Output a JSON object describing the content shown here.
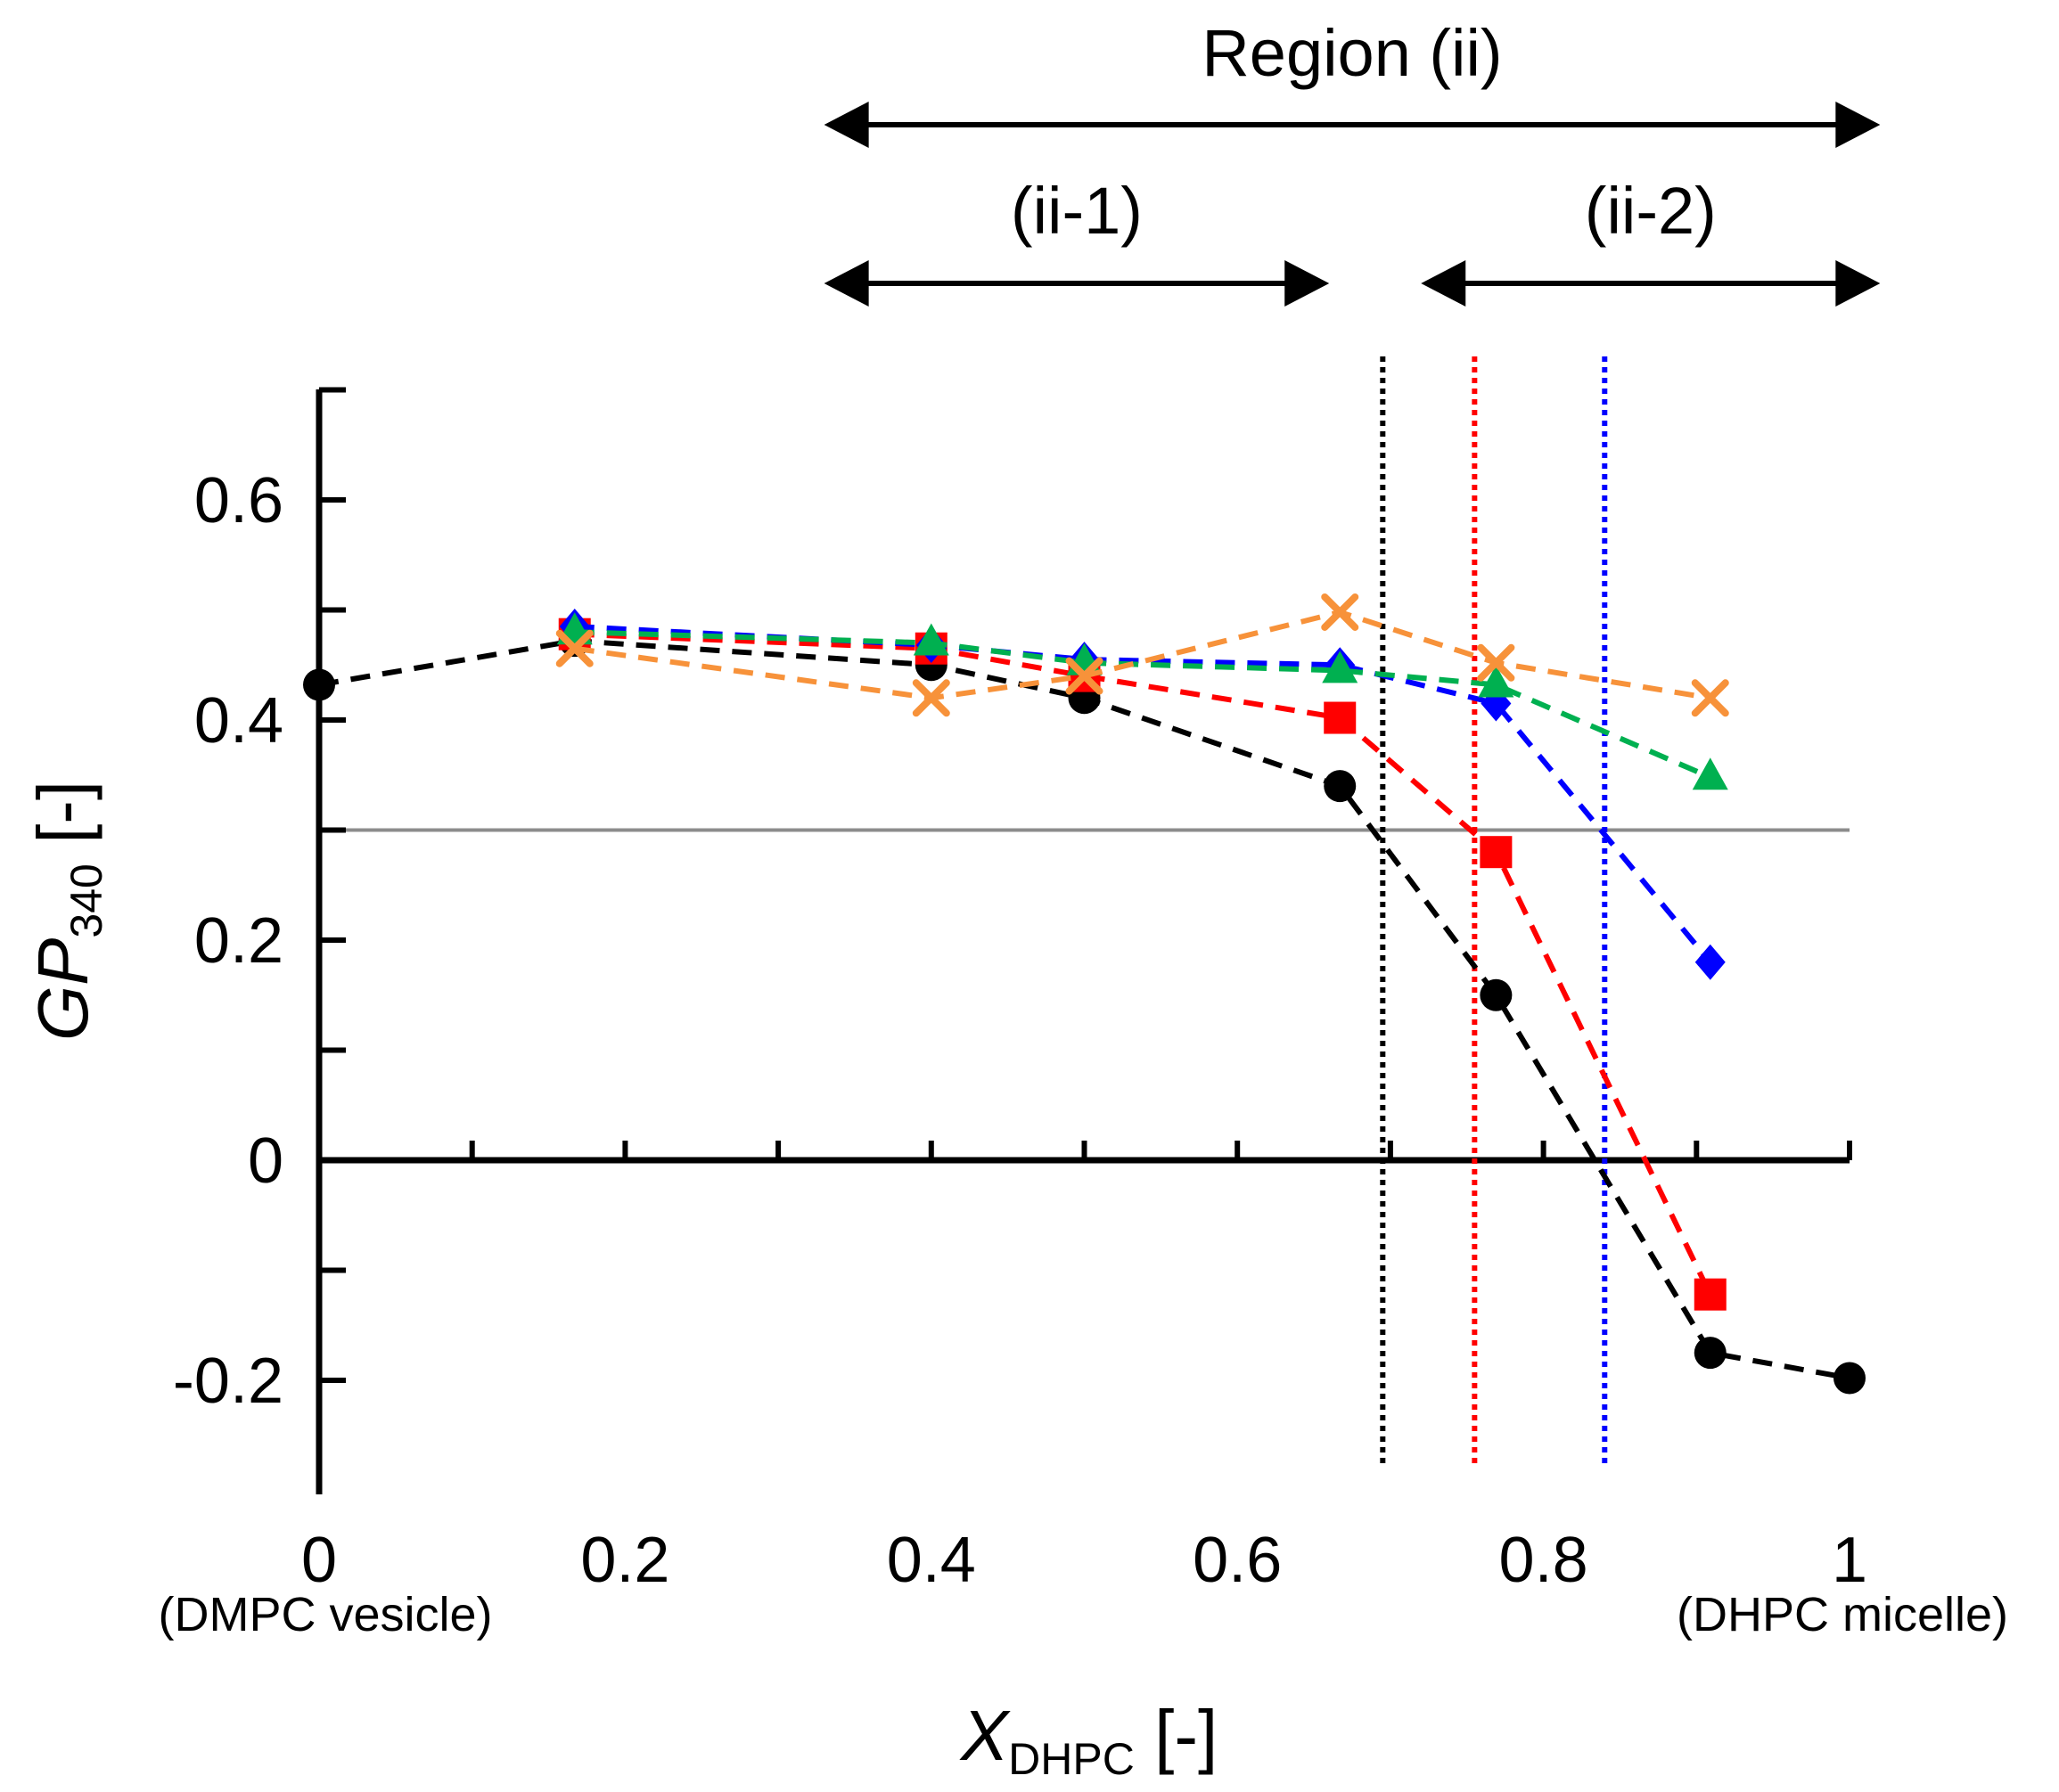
{
  "chart_data": {
    "type": "line",
    "xlabel_main": "X",
    "xlabel_sub": "DHPC",
    "xlabel_suffix": " [-]",
    "ylabel_main": "GP",
    "ylabel_sub": "340",
    "ylabel_suffix": " [-]",
    "xlim": [
      0,
      1
    ],
    "ylim": [
      -0.27,
      0.7
    ],
    "x_ticks": [
      0,
      0.2,
      0.4,
      0.6,
      0.8,
      1
    ],
    "x_tick_labels": [
      "0",
      "0.2",
      "0.4",
      "0.6",
      "0.8",
      "1"
    ],
    "x_minor_ticks": [
      0.1,
      0.3,
      0.5,
      0.7,
      0.9
    ],
    "y_ticks": [
      -0.2,
      0,
      0.2,
      0.4,
      0.6
    ],
    "y_tick_labels": [
      "-0.2",
      "0",
      "0.2",
      "0.4",
      "0.6"
    ],
    "y_minor_ticks": [
      -0.1,
      0.1,
      0.3,
      0.5,
      0.7
    ],
    "x_end_labels": [
      "(DMPC vesicle)",
      "(DHPC micelle)"
    ],
    "threshold": 0.3,
    "vertical_lines": [
      {
        "x": 0.695,
        "color": "#000000"
      },
      {
        "x": 0.755,
        "color": "#ff0000"
      },
      {
        "x": 0.84,
        "color": "#0000ff"
      }
    ],
    "regions": [
      {
        "label": "Region (ii)",
        "from": 0.33,
        "to": 1.02,
        "level": "top"
      },
      {
        "label": "(ii-1)",
        "from": 0.33,
        "to": 0.66,
        "level": "middle"
      },
      {
        "label": "(ii-2)",
        "from": 0.72,
        "to": 1.02,
        "level": "middle"
      }
    ],
    "series": [
      {
        "name": "black",
        "color": "#000000",
        "marker": "circle",
        "x": [
          0,
          0.167,
          0.4,
          0.5,
          0.667,
          0.769,
          0.909,
          1.0
        ],
        "y": [
          0.432,
          0.472,
          0.45,
          0.42,
          0.34,
          0.15,
          -0.175,
          -0.198
        ]
      },
      {
        "name": "red",
        "color": "#ff0000",
        "marker": "square",
        "x": [
          0.167,
          0.4,
          0.5,
          0.667,
          0.769,
          0.909
        ],
        "y": [
          0.478,
          0.465,
          0.44,
          0.402,
          0.28,
          -0.122
        ]
      },
      {
        "name": "blue",
        "color": "#0000ff",
        "marker": "diamond",
        "x": [
          0.167,
          0.4,
          0.5,
          0.667,
          0.769,
          0.909
        ],
        "y": [
          0.485,
          0.468,
          0.455,
          0.45,
          0.415,
          0.18
        ]
      },
      {
        "name": "green",
        "color": "#00b050",
        "marker": "triangle",
        "x": [
          0.167,
          0.4,
          0.5,
          0.667,
          0.769,
          0.909
        ],
        "y": [
          0.48,
          0.47,
          0.452,
          0.445,
          0.432,
          0.348
        ]
      },
      {
        "name": "orange",
        "color": "#f7923a",
        "marker": "x",
        "x": [
          0.167,
          0.4,
          0.5,
          0.667,
          0.769,
          0.909
        ],
        "y": [
          0.465,
          0.42,
          0.44,
          0.498,
          0.452,
          0.42
        ]
      }
    ]
  }
}
